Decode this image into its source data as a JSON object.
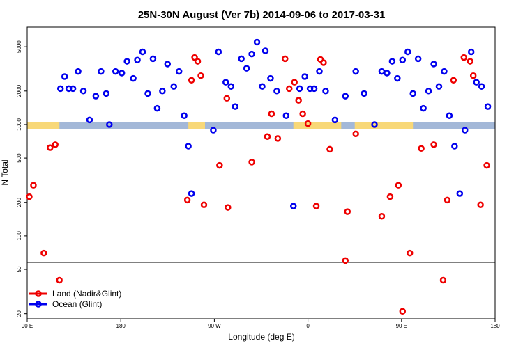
{
  "chart_data": {
    "type": "scatter",
    "title": "25N-30N August (Ver 7b)   2014-09-06 to 2017-03-31",
    "xlabel": "Longitude (deg E)",
    "ylabel": "N Total",
    "x_ticks": [
      {
        "value": 90,
        "label": "90 E"
      },
      {
        "value": 180,
        "label": "180"
      },
      {
        "value": 270,
        "label": "90 W"
      },
      {
        "value": 360,
        "label": "0"
      },
      {
        "value": 450,
        "label": "90 E"
      },
      {
        "value": 540,
        "label": "180"
      }
    ],
    "y_ticks": [
      {
        "value": 20,
        "label": "20"
      },
      {
        "value": 50,
        "label": "50"
      },
      {
        "value": 100,
        "label": "100"
      },
      {
        "value": 200,
        "label": "200"
      },
      {
        "value": 500,
        "label": "500"
      },
      {
        "value": 1000,
        "label": "1000"
      },
      {
        "value": 2000,
        "label": "2000"
      },
      {
        "value": 5000,
        "label": "5000"
      }
    ],
    "xlim": [
      90,
      540
    ],
    "ylim": [
      18,
      7500
    ],
    "y_scale": "log",
    "legend_position": "bottom-left",
    "land_color": "#f8d878",
    "ocean_color": "#a3b8d8",
    "land_segments": [
      [
        90,
        121
      ],
      [
        245,
        261
      ],
      [
        346,
        392
      ],
      [
        405,
        461
      ]
    ],
    "series": [
      {
        "name": "Land (Nadir&Glint)",
        "color": "#ee0000",
        "x": [
          92,
          96,
          106,
          112,
          117,
          121,
          244,
          248,
          251,
          254,
          257,
          260,
          275,
          282,
          283,
          306,
          321,
          325,
          331,
          338,
          342,
          347,
          351,
          355,
          360,
          368,
          372,
          375,
          381,
          396,
          398,
          406,
          431,
          439,
          447,
          451,
          458,
          469,
          481,
          490,
          494,
          500,
          510,
          516,
          519,
          526,
          532
        ],
        "y": [
          225,
          285,
          70,
          620,
          660,
          40,
          210,
          2500,
          4000,
          3700,
          2750,
          190,
          430,
          1720,
          180,
          460,
          780,
          1250,
          750,
          3900,
          2100,
          2400,
          1650,
          1250,
          1020,
          185,
          3850,
          3600,
          600,
          60,
          165,
          825,
          150,
          225,
          285,
          21,
          70,
          610,
          660,
          40,
          210,
          2500,
          4000,
          3700,
          2750,
          190,
          430
        ]
      },
      {
        "name": "Ocean (Glint)",
        "color": "#0000ee",
        "x": [
          122,
          126,
          130,
          134,
          139,
          144,
          150,
          156,
          161,
          166,
          169,
          175,
          181,
          186,
          192,
          196,
          201,
          206,
          211,
          215,
          220,
          225,
          231,
          236,
          241,
          245,
          248,
          269,
          274,
          281,
          286,
          290,
          296,
          301,
          306,
          311,
          316,
          319,
          324,
          330,
          339,
          346,
          352,
          357,
          362,
          366,
          371,
          377,
          386,
          396,
          406,
          414,
          424,
          431,
          436,
          441,
          446,
          451,
          456,
          461,
          466,
          471,
          476,
          481,
          486,
          491,
          496,
          501,
          506,
          511,
          517,
          522,
          527,
          533
        ],
        "y": [
          2100,
          2700,
          2100,
          2100,
          3000,
          2000,
          1100,
          1800,
          3000,
          1900,
          1000,
          3000,
          2900,
          3700,
          2600,
          3800,
          4500,
          1900,
          3900,
          1400,
          2000,
          3500,
          2200,
          3000,
          1200,
          640,
          240,
          890,
          4500,
          2400,
          2200,
          1450,
          3900,
          3200,
          4300,
          5500,
          2200,
          4600,
          2600,
          2000,
          1200,
          185,
          2100,
          2700,
          2100,
          2100,
          3000,
          2000,
          1100,
          1800,
          3000,
          1900,
          1000,
          3000,
          2900,
          3700,
          2600,
          3800,
          4500,
          1900,
          3900,
          1400,
          2000,
          3500,
          2200,
          3000,
          1200,
          640,
          240,
          890,
          4500,
          2400,
          2200,
          1450
        ]
      }
    ]
  }
}
